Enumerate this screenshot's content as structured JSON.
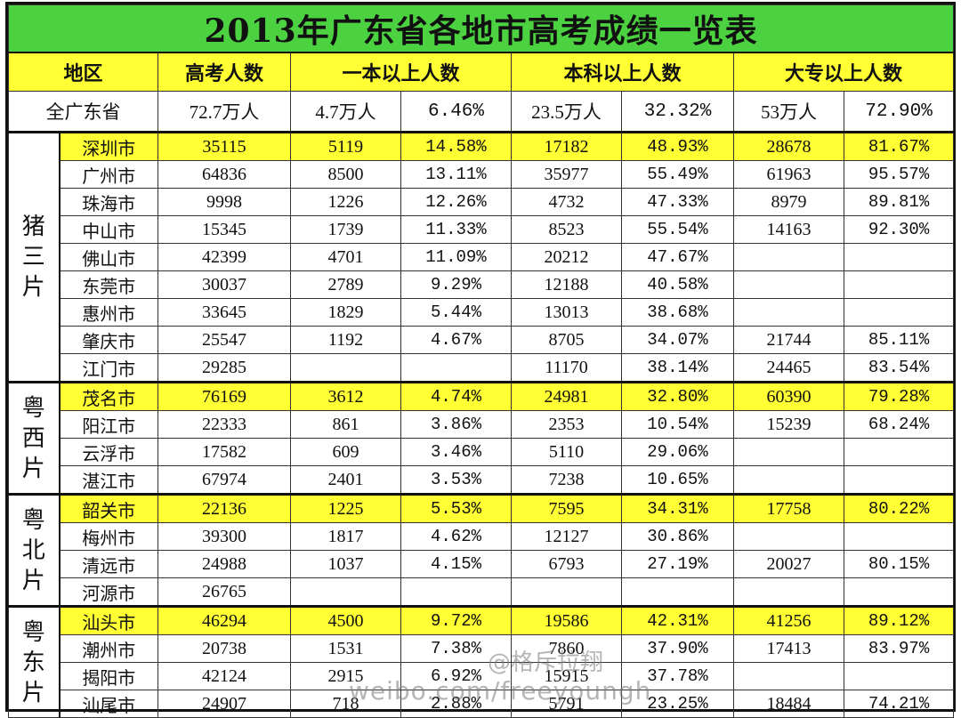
{
  "title": "2013年广东省各地市高考成绩一览表",
  "headers": [
    "地区",
    "高考人数",
    "一本以上人数",
    "本科以上人数",
    "大专以上人数"
  ],
  "province": {
    "name": "全广东省",
    "total": "72.7万人",
    "tier1_count": "4.7万人",
    "tier1_pct": "6.46%",
    "bachelor_count": "23.5万人",
    "bachelor_pct": "32.32%",
    "college_count": "53万人",
    "college_pct": "72.90%"
  },
  "zones": [
    {
      "label": "猪三片",
      "rows": [
        {
          "city": "深圳市",
          "total": "35115",
          "t1": "5119",
          "t1p": "14.58%",
          "b": "17182",
          "bp": "48.93%",
          "c": "28678",
          "cp": "81.67%",
          "highlight": true
        },
        {
          "city": "广州市",
          "total": "64836",
          "t1": "8500",
          "t1p": "13.11%",
          "b": "35977",
          "bp": "55.49%",
          "c": "61963",
          "cp": "95.57%"
        },
        {
          "city": "珠海市",
          "total": "9998",
          "t1": "1226",
          "t1p": "12.26%",
          "b": "4732",
          "bp": "47.33%",
          "c": "8979",
          "cp": "89.81%"
        },
        {
          "city": "中山市",
          "total": "15345",
          "t1": "1739",
          "t1p": "11.33%",
          "b": "8523",
          "bp": "55.54%",
          "c": "14163",
          "cp": "92.30%"
        },
        {
          "city": "佛山市",
          "total": "42399",
          "t1": "4701",
          "t1p": "11.09%",
          "b": "20212",
          "bp": "47.67%",
          "c": "",
          "cp": ""
        },
        {
          "city": "东莞市",
          "total": "30037",
          "t1": "2789",
          "t1p": "9.29%",
          "b": "12188",
          "bp": "40.58%",
          "c": "",
          "cp": ""
        },
        {
          "city": "惠州市",
          "total": "33645",
          "t1": "1829",
          "t1p": "5.44%",
          "b": "13013",
          "bp": "38.68%",
          "c": "",
          "cp": ""
        },
        {
          "city": "肇庆市",
          "total": "25547",
          "t1": "1192",
          "t1p": "4.67%",
          "b": "8705",
          "bp": "34.07%",
          "c": "21744",
          "cp": "85.11%"
        },
        {
          "city": "江门市",
          "total": "29285",
          "t1": "",
          "t1p": "",
          "b": "11170",
          "bp": "38.14%",
          "c": "24465",
          "cp": "83.54%"
        }
      ]
    },
    {
      "label": "粤西片",
      "rows": [
        {
          "city": "茂名市",
          "total": "76169",
          "t1": "3612",
          "t1p": "4.74%",
          "b": "24981",
          "bp": "32.80%",
          "c": "60390",
          "cp": "79.28%",
          "highlight": true
        },
        {
          "city": "阳江市",
          "total": "22333",
          "t1": "861",
          "t1p": "3.86%",
          "b": "2353",
          "bp": "10.54%",
          "c": "15239",
          "cp": "68.24%"
        },
        {
          "city": "云浮市",
          "total": "17582",
          "t1": "609",
          "t1p": "3.46%",
          "b": "5110",
          "bp": "29.06%",
          "c": "",
          "cp": ""
        },
        {
          "city": "湛江市",
          "total": "67974",
          "t1": "2401",
          "t1p": "3.53%",
          "b": "7238",
          "bp": "10.65%",
          "c": "",
          "cp": ""
        }
      ]
    },
    {
      "label": "粤北片",
      "rows": [
        {
          "city": "韶关市",
          "total": "22136",
          "t1": "1225",
          "t1p": "5.53%",
          "b": "7595",
          "bp": "34.31%",
          "c": "17758",
          "cp": "80.22%",
          "highlight": true
        },
        {
          "city": "梅州市",
          "total": "39300",
          "t1": "1817",
          "t1p": "4.62%",
          "b": "12127",
          "bp": "30.86%",
          "c": "",
          "cp": ""
        },
        {
          "city": "清远市",
          "total": "24988",
          "t1": "1037",
          "t1p": "4.15%",
          "b": "6793",
          "bp": "27.19%",
          "c": "20027",
          "cp": "80.15%"
        },
        {
          "city": "河源市",
          "total": "26765",
          "t1": "",
          "t1p": "",
          "b": "",
          "bp": "",
          "c": "",
          "cp": ""
        }
      ]
    },
    {
      "label": "粤东片",
      "rows": [
        {
          "city": "汕头市",
          "total": "46294",
          "t1": "4500",
          "t1p": "9.72%",
          "b": "19586",
          "bp": "42.31%",
          "c": "41256",
          "cp": "89.12%",
          "highlight": true
        },
        {
          "city": "潮州市",
          "total": "20738",
          "t1": "1531",
          "t1p": "7.38%",
          "b": "7860",
          "bp": "37.90%",
          "c": "17413",
          "cp": "83.97%"
        },
        {
          "city": "揭阳市",
          "total": "42124",
          "t1": "2915",
          "t1p": "6.92%",
          "b": "15915",
          "bp": "37.78%",
          "c": "",
          "cp": ""
        },
        {
          "city": "汕尾市",
          "total": "24907",
          "t1": "718",
          "t1p": "2.88%",
          "b": "5791",
          "bp": "23.25%",
          "c": "18484",
          "cp": "74.21%"
        }
      ]
    }
  ],
  "watermark": {
    "handle": "@格斥拉翔",
    "url": "weibo.com/freeyoungh"
  }
}
